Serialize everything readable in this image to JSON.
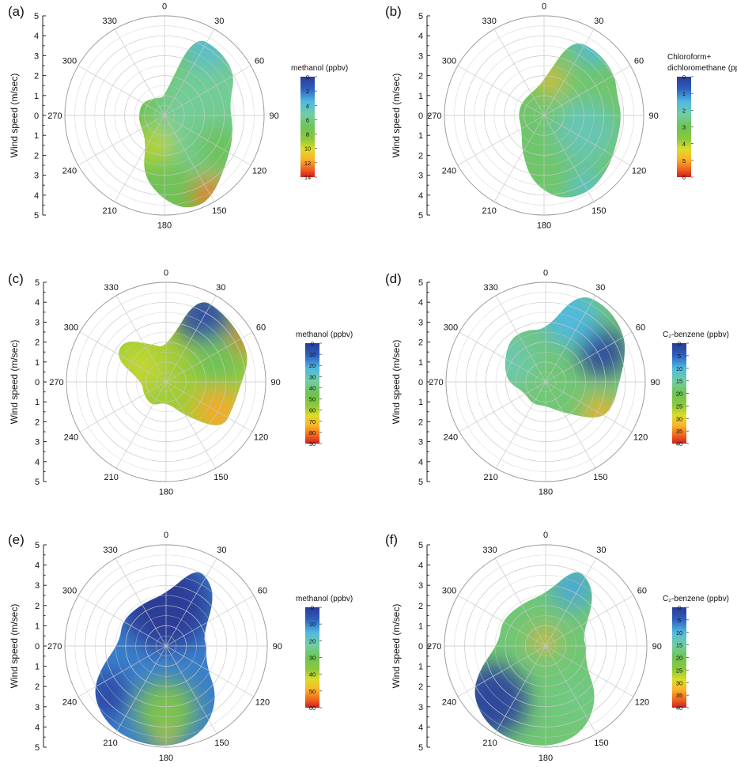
{
  "chart_data": [
    {
      "type": "heatmap",
      "panel_label": "(a)",
      "ylabel": "Wind speed (m/sec)",
      "r_ticks": [
        "0",
        "1",
        "2",
        "3",
        "4",
        "5"
      ],
      "angle_ticks": [
        "0",
        "30",
        "60",
        "90",
        "120",
        "150",
        "180",
        "210",
        "240",
        "270",
        "300",
        "330"
      ],
      "rmax": 5,
      "colorbar": {
        "title": [
          "methanol (ppbv)"
        ],
        "min": 0,
        "max": 14,
        "ticks": [
          "0",
          "2",
          "4",
          "6",
          "8",
          "10",
          "12",
          "14"
        ]
      },
      "blobs": [
        {
          "theta": 90,
          "r": 2.5,
          "value": 5.5,
          "size": 3.0
        },
        {
          "theta": 30,
          "r": 4.2,
          "value": 4.0,
          "size": 1.3
        },
        {
          "theta": 150,
          "r": 4.6,
          "value": 12.5,
          "size": 0.9
        },
        {
          "theta": 200,
          "r": 1.6,
          "value": 9.5,
          "size": 1.0
        },
        {
          "theta": 120,
          "r": 3.2,
          "value": 7.0,
          "size": 1.2
        }
      ],
      "base_value": 7.0
    },
    {
      "type": "heatmap",
      "panel_label": "(b)",
      "ylabel": "Wind speed (m/sec)",
      "r_ticks": [
        "0",
        "1",
        "2",
        "3",
        "4",
        "5"
      ],
      "angle_ticks": [
        "0",
        "30",
        "60",
        "90",
        "120",
        "150",
        "180",
        "210",
        "240",
        "270",
        "300",
        "330"
      ],
      "rmax": 5,
      "colorbar": {
        "title": [
          "Chloroform+",
          "dichloromethane (ppbv)"
        ],
        "min": 0,
        "max": 6,
        "ticks": [
          "0",
          "1",
          "2",
          "3",
          "4",
          "5",
          "6"
        ]
      },
      "blobs": [
        {
          "theta": 10,
          "r": 1.8,
          "value": 4.8,
          "size": 0.7
        },
        {
          "theta": 35,
          "r": 4.3,
          "value": 1.5,
          "size": 1.0
        },
        {
          "theta": 110,
          "r": 2.2,
          "value": 2.0,
          "size": 1.6
        },
        {
          "theta": 150,
          "r": 4.2,
          "value": 1.8,
          "size": 1.0
        }
      ],
      "base_value": 2.8
    },
    {
      "type": "heatmap",
      "panel_label": "(c)",
      "ylabel": "Wind speed (m/sec)",
      "r_ticks": [
        "0",
        "1",
        "2",
        "3",
        "4",
        "5"
      ],
      "angle_ticks": [
        "0",
        "30",
        "60",
        "90",
        "120",
        "150",
        "180",
        "210",
        "240",
        "270",
        "300",
        "330"
      ],
      "rmax": 5,
      "colorbar": {
        "title": [
          "methanol (ppbv)"
        ],
        "min": 0,
        "max": 90,
        "ticks": [
          "0",
          "10",
          "20",
          "30",
          "40",
          "50",
          "60",
          "70",
          "80",
          "90"
        ]
      },
      "blobs": [
        {
          "theta": 30,
          "r": 3.8,
          "value": 5,
          "size": 1.4
        },
        {
          "theta": 62,
          "r": 4.4,
          "value": 85,
          "size": 0.6
        },
        {
          "theta": 120,
          "r": 3.0,
          "value": 75,
          "size": 1.2
        },
        {
          "theta": 70,
          "r": 2.8,
          "value": 45,
          "size": 1.3
        },
        {
          "theta": 300,
          "r": 1.5,
          "value": 62,
          "size": 1.2
        }
      ],
      "base_value": 58
    },
    {
      "type": "heatmap",
      "panel_label": "(d)",
      "ylabel": "Wind speed (m/sec)",
      "r_ticks": [
        "0",
        "1",
        "2",
        "3",
        "4",
        "5"
      ],
      "angle_ticks": [
        "0",
        "30",
        "60",
        "90",
        "120",
        "150",
        "180",
        "210",
        "240",
        "270",
        "300",
        "330"
      ],
      "rmax": 5,
      "colorbar": {
        "title": [
          "C₂-benzene (ppbv)"
        ],
        "min": 0,
        "max": 40,
        "ticks": [
          "0",
          "5",
          "10",
          "15",
          "20",
          "25",
          "30",
          "35",
          "40"
        ]
      },
      "blobs": [
        {
          "theta": 62,
          "r": 3.2,
          "value": 1,
          "size": 1.2
        },
        {
          "theta": 20,
          "r": 3.5,
          "value": 10,
          "size": 1.5
        },
        {
          "theta": 120,
          "r": 3.2,
          "value": 33,
          "size": 0.9
        },
        {
          "theta": 300,
          "r": 2.2,
          "value": 14,
          "size": 1.4
        }
      ],
      "base_value": 18
    },
    {
      "type": "heatmap",
      "panel_label": "(e)",
      "ylabel": "Wind speed (m/sec)",
      "r_ticks": [
        "0",
        "1",
        "2",
        "3",
        "4",
        "5"
      ],
      "angle_ticks": [
        "0",
        "30",
        "60",
        "90",
        "120",
        "150",
        "180",
        "210",
        "240",
        "270",
        "300",
        "330"
      ],
      "rmax": 5,
      "colorbar": {
        "title": [
          "methanol (ppbv)"
        ],
        "min": 0,
        "max": 60,
        "ticks": [
          "0",
          "10",
          "20",
          "30",
          "40",
          "50",
          "60"
        ]
      },
      "blobs": [
        {
          "theta": 0,
          "r": 2.0,
          "value": 0,
          "size": 2.2
        },
        {
          "theta": 180,
          "r": 3.2,
          "value": 34,
          "size": 1.5
        },
        {
          "theta": 180,
          "r": 4.8,
          "value": 45,
          "size": 0.5
        },
        {
          "theta": 230,
          "r": 3.8,
          "value": 3,
          "size": 1.2
        }
      ],
      "base_value": 10
    },
    {
      "type": "heatmap",
      "panel_label": "(f)",
      "ylabel": "Wind speed (m/sec)",
      "r_ticks": [
        "0",
        "1",
        "2",
        "3",
        "4",
        "5"
      ],
      "angle_ticks": [
        "0",
        "30",
        "60",
        "90",
        "120",
        "150",
        "180",
        "210",
        "240",
        "270",
        "300",
        "330"
      ],
      "rmax": 5,
      "colorbar": {
        "title": [
          "C₂-benzene (ppbv)"
        ],
        "min": 0,
        "max": 40,
        "ticks": [
          "0",
          "5",
          "10",
          "15",
          "20",
          "25",
          "30",
          "35",
          "40"
        ]
      },
      "blobs": [
        {
          "theta": 345,
          "r": 0.3,
          "value": 33,
          "size": 0.6
        },
        {
          "theta": 25,
          "r": 3.2,
          "value": 9,
          "size": 1.1
        },
        {
          "theta": 225,
          "r": 3.8,
          "value": 1,
          "size": 1.8
        },
        {
          "theta": 150,
          "r": 3.0,
          "value": 17,
          "size": 1.2
        }
      ],
      "base_value": 18
    }
  ]
}
